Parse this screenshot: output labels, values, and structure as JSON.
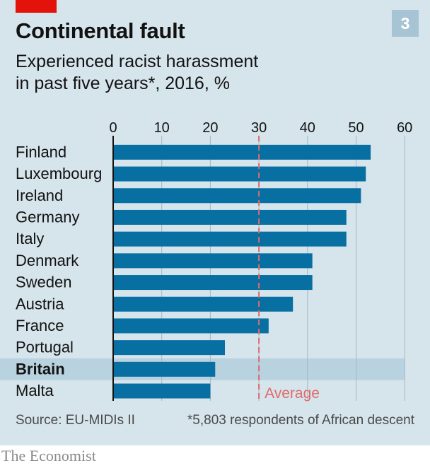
{
  "header": {
    "title": "Continental fault",
    "subtitle_line1": "Experienced racist harassment",
    "subtitle_line2": "in past five years*, 2016, %",
    "badge": "3"
  },
  "footer": {
    "source": "Source: EU-MIDIs II",
    "footnote": "*5,803 respondents of African descent",
    "brand": "The Economist"
  },
  "colors": {
    "bar": "#076fa1",
    "average_line": "#e06a6a",
    "highlight_band": "#b9d2df",
    "background": "#d6e4ec",
    "accent": "#e3120b"
  },
  "chart_data": {
    "type": "bar",
    "orientation": "horizontal",
    "categories": [
      "Finland",
      "Luxembourg",
      "Ireland",
      "Germany",
      "Italy",
      "Denmark",
      "Sweden",
      "Austria",
      "France",
      "Portugal",
      "Britain",
      "Malta"
    ],
    "values": [
      53,
      52,
      51,
      48,
      48,
      41,
      41,
      37,
      32,
      23,
      21,
      20
    ],
    "highlighted_category": "Britain",
    "xlim": [
      0,
      60
    ],
    "xticks": [
      0,
      10,
      20,
      30,
      40,
      50,
      60
    ],
    "gridlines": true,
    "reference_line": {
      "value": 30,
      "label": "Average"
    }
  }
}
